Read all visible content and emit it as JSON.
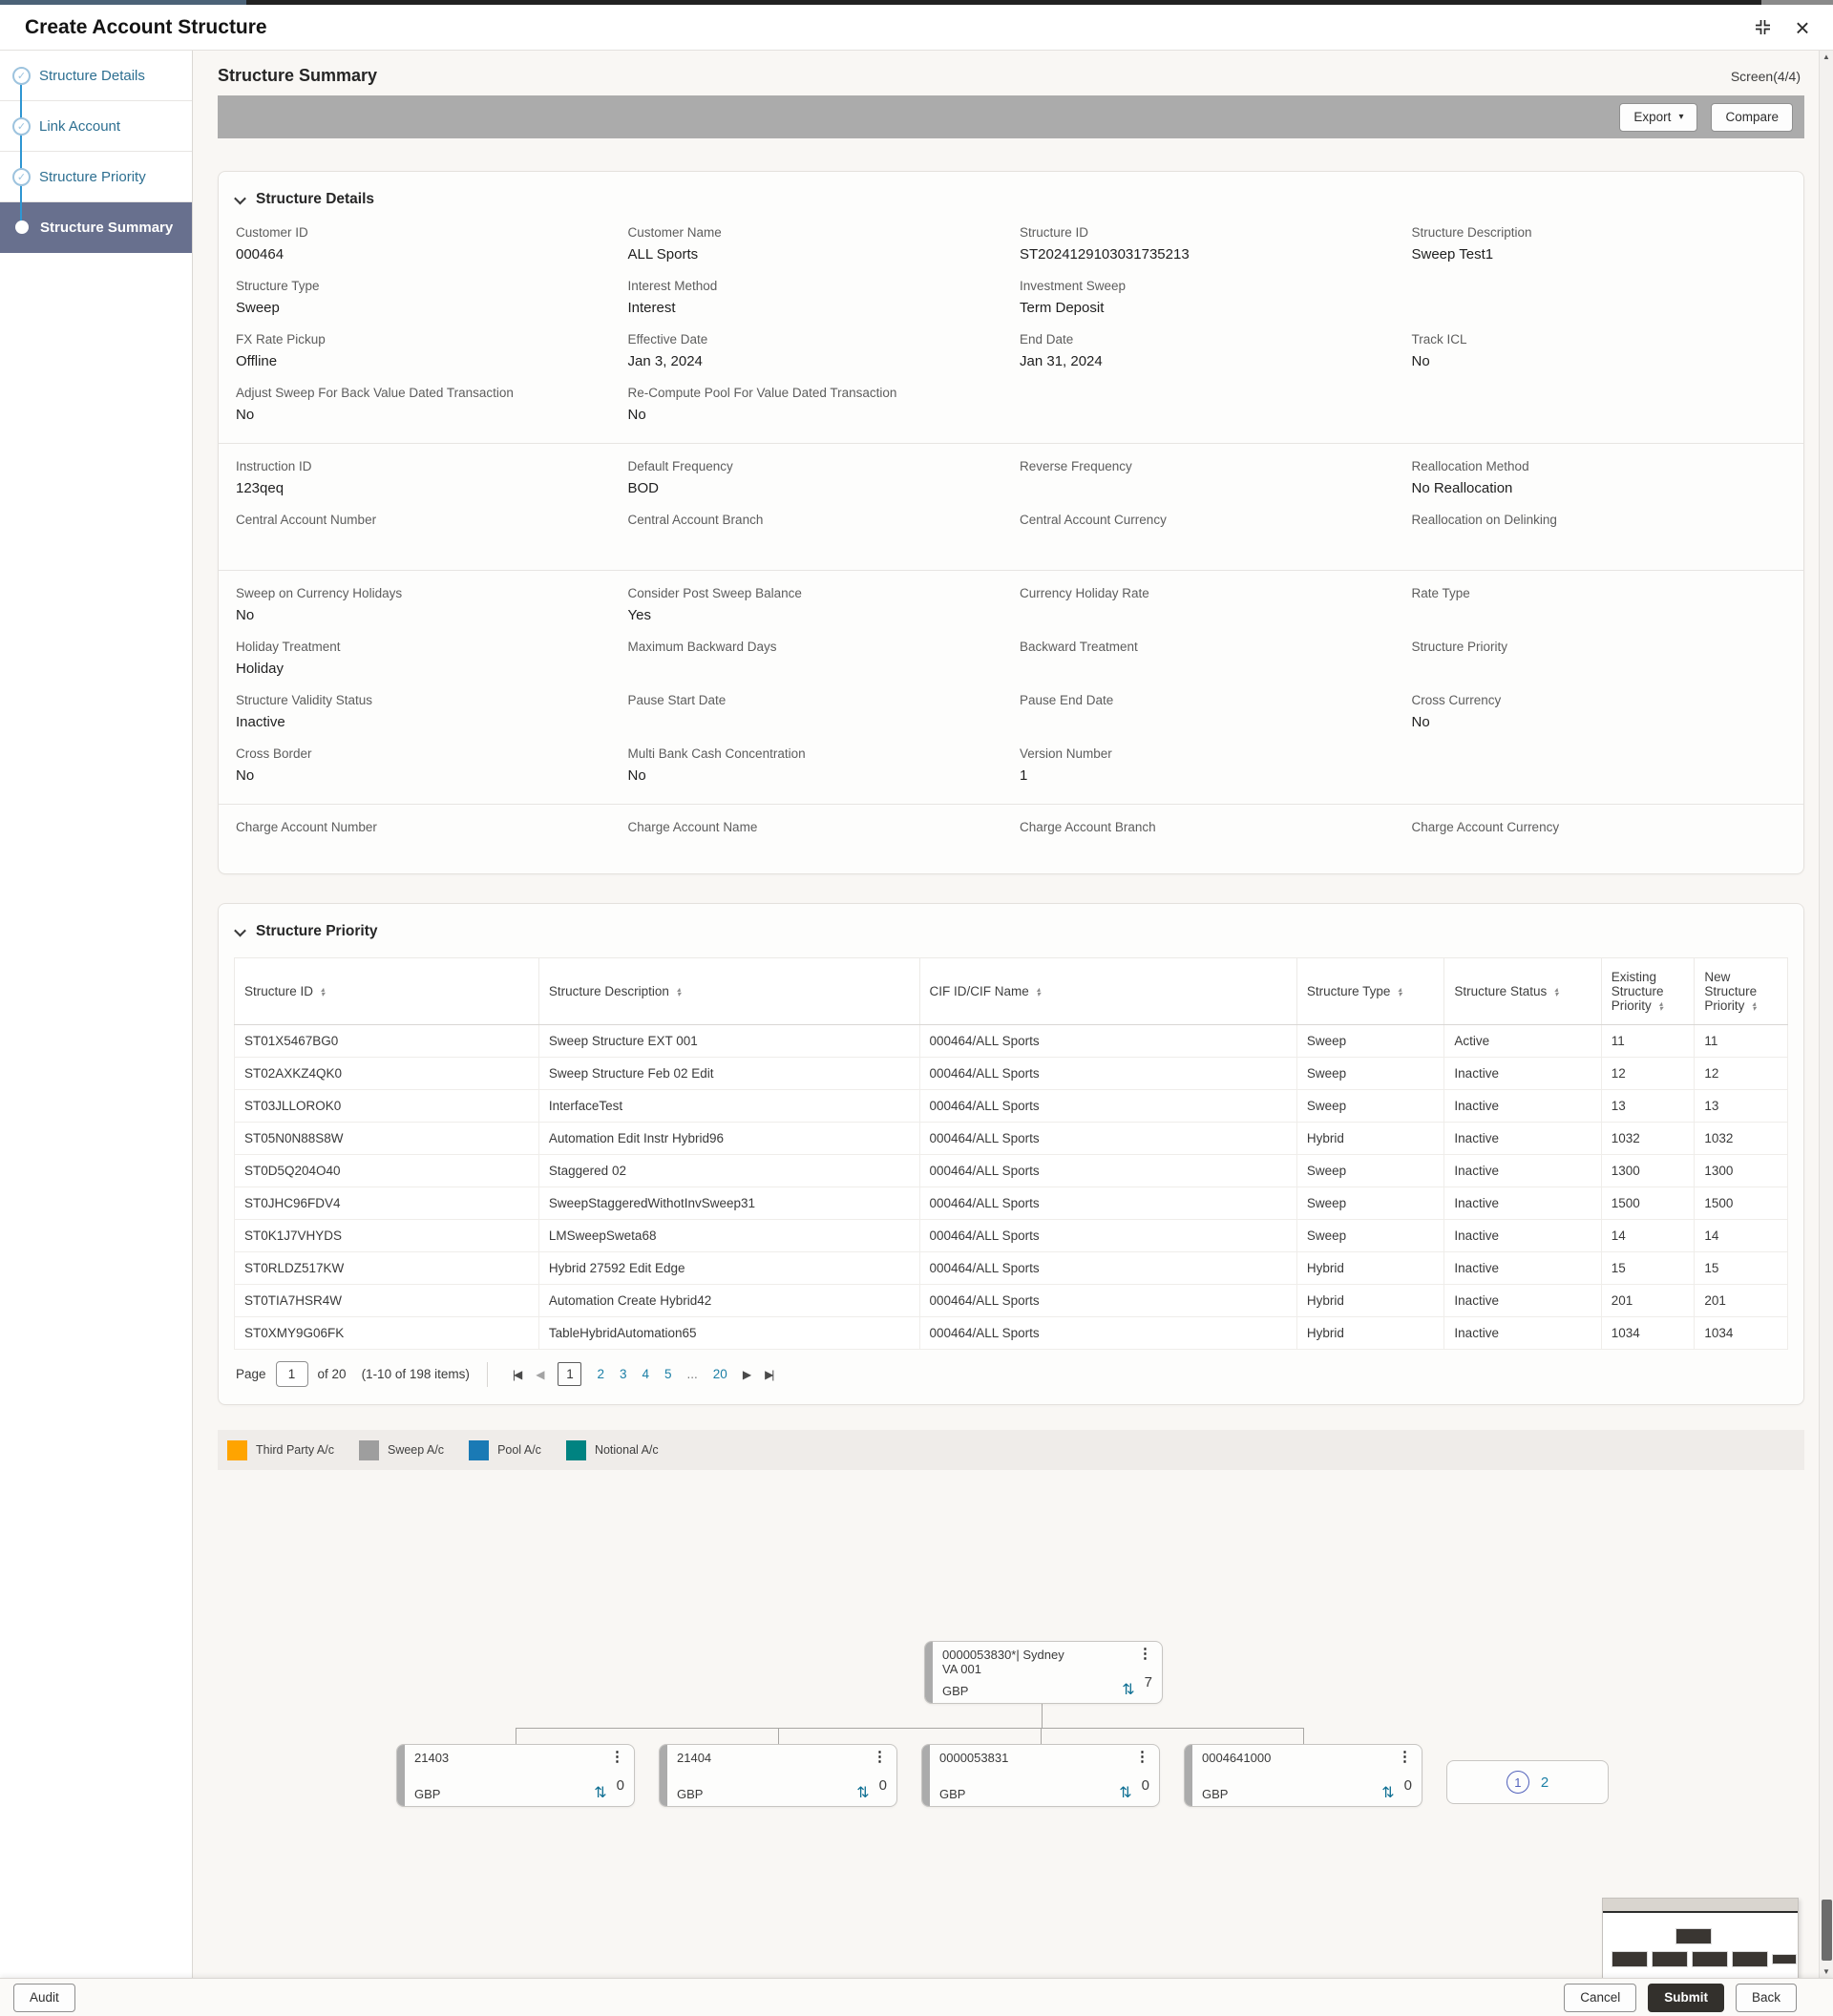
{
  "window": {
    "title": "Create Account Structure"
  },
  "wizard": {
    "steps": [
      {
        "label": "Structure Details",
        "state": "done"
      },
      {
        "label": "Link Account",
        "state": "done"
      },
      {
        "label": "Structure Priority",
        "state": "done"
      },
      {
        "label": "Structure Summary",
        "state": "active"
      }
    ]
  },
  "header": {
    "title": "Structure Summary",
    "screen": "Screen(4/4)"
  },
  "toolbar": {
    "export_label": "Export",
    "compare_label": "Compare"
  },
  "structure_details": {
    "title": "Structure Details",
    "groups": [
      [
        {
          "label": "Customer ID",
          "value": "000464"
        },
        {
          "label": "Customer Name",
          "value": "ALL Sports"
        },
        {
          "label": "Structure ID",
          "value": "ST2024129103031735213"
        },
        {
          "label": "Structure Description",
          "value": "Sweep Test1"
        },
        {
          "label": "Structure Type",
          "value": "Sweep"
        },
        {
          "label": "Interest Method",
          "value": "Interest"
        },
        {
          "label": "Investment Sweep",
          "value": "Term Deposit"
        },
        {
          "label": "",
          "value": ""
        },
        {
          "label": "FX Rate Pickup",
          "value": "Offline"
        },
        {
          "label": "Effective Date",
          "value": "Jan 3, 2024"
        },
        {
          "label": "End Date",
          "value": "Jan 31, 2024"
        },
        {
          "label": "Track ICL",
          "value": "No"
        },
        {
          "label": "Adjust Sweep For Back Value Dated Transaction",
          "value": "No"
        },
        {
          "label": "Re-Compute Pool For Value Dated Transaction",
          "value": "No"
        },
        {
          "label": "",
          "value": ""
        },
        {
          "label": "",
          "value": ""
        }
      ],
      [
        {
          "label": "Instruction ID",
          "value": "123qeq"
        },
        {
          "label": "Default Frequency",
          "value": "BOD"
        },
        {
          "label": "Reverse Frequency",
          "value": ""
        },
        {
          "label": "Reallocation Method",
          "value": "No Reallocation"
        },
        {
          "label": "Central Account Number",
          "value": ""
        },
        {
          "label": "Central Account Branch",
          "value": ""
        },
        {
          "label": "Central Account Currency",
          "value": ""
        },
        {
          "label": "Reallocation on Delinking",
          "value": ""
        }
      ],
      [
        {
          "label": "Sweep on Currency Holidays",
          "value": "No"
        },
        {
          "label": "Consider Post Sweep Balance",
          "value": "Yes"
        },
        {
          "label": "Currency Holiday Rate",
          "value": ""
        },
        {
          "label": "Rate Type",
          "value": ""
        },
        {
          "label": "Holiday Treatment",
          "value": "Holiday"
        },
        {
          "label": "Maximum Backward Days",
          "value": ""
        },
        {
          "label": "Backward Treatment",
          "value": ""
        },
        {
          "label": "Structure Priority",
          "value": ""
        },
        {
          "label": "Structure Validity Status",
          "value": "Inactive"
        },
        {
          "label": "Pause Start Date",
          "value": ""
        },
        {
          "label": "Pause End Date",
          "value": ""
        },
        {
          "label": "Cross Currency",
          "value": "No"
        },
        {
          "label": "Cross Border",
          "value": "No"
        },
        {
          "label": "Multi Bank Cash Concentration",
          "value": "No"
        },
        {
          "label": "Version Number",
          "value": "1"
        },
        {
          "label": "",
          "value": ""
        }
      ],
      [
        {
          "label": "Charge Account Number",
          "value": ""
        },
        {
          "label": "Charge Account Name",
          "value": ""
        },
        {
          "label": "Charge Account Branch",
          "value": ""
        },
        {
          "label": "Charge Account Currency",
          "value": ""
        }
      ]
    ]
  },
  "structure_priority": {
    "title": "Structure Priority",
    "columns": [
      "Structure ID",
      "Structure Description",
      "CIF ID/CIF Name",
      "Structure Type",
      "Structure Status",
      "Existing Structure Priority",
      "New Structure Priority"
    ],
    "rows": [
      [
        "ST01X5467BG0",
        "Sweep Structure EXT 001",
        "000464/ALL Sports",
        "Sweep",
        "Active",
        "11",
        "11"
      ],
      [
        "ST02AXKZ4QK0",
        "Sweep Structure Feb 02 Edit",
        "000464/ALL Sports",
        "Sweep",
        "Inactive",
        "12",
        "12"
      ],
      [
        "ST03JLLOROK0",
        "InterfaceTest",
        "000464/ALL Sports",
        "Sweep",
        "Inactive",
        "13",
        "13"
      ],
      [
        "ST05N0N88S8W",
        "Automation Edit Instr Hybrid96",
        "000464/ALL Sports",
        "Hybrid",
        "Inactive",
        "1032",
        "1032"
      ],
      [
        "ST0D5Q204O40",
        "Staggered 02",
        "000464/ALL Sports",
        "Sweep",
        "Inactive",
        "1300",
        "1300"
      ],
      [
        "ST0JHC96FDV4",
        "SweepStaggeredWithotInvSweep31",
        "000464/ALL Sports",
        "Sweep",
        "Inactive",
        "1500",
        "1500"
      ],
      [
        "ST0K1J7VHYDS",
        "LMSweepSweta68",
        "000464/ALL Sports",
        "Sweep",
        "Inactive",
        "14",
        "14"
      ],
      [
        "ST0RLDZ517KW",
        "Hybrid 27592 Edit Edge",
        "000464/ALL Sports",
        "Hybrid",
        "Inactive",
        "15",
        "15"
      ],
      [
        "ST0TIA7HSR4W",
        "Automation Create Hybrid42",
        "000464/ALL Sports",
        "Hybrid",
        "Inactive",
        "201",
        "201"
      ],
      [
        "ST0XMY9G06FK",
        "TableHybridAutomation65",
        "000464/ALL Sports",
        "Hybrid",
        "Inactive",
        "1034",
        "1034"
      ]
    ],
    "pagination": {
      "page_label": "Page",
      "page_value": "1",
      "of_label": "of 20",
      "items_label": "(1-10 of 198 items)",
      "pages": [
        "1",
        "2",
        "3",
        "4",
        "5",
        "...",
        "20"
      ],
      "current_page": "1"
    }
  },
  "tree": {
    "legend": [
      {
        "label": "Third Party A/c",
        "color": "#FFA400"
      },
      {
        "label": "Sweep A/c",
        "color": "#9E9E9E"
      },
      {
        "label": "Pool A/c",
        "color": "#1A7AB5"
      },
      {
        "label": "Notional A/c",
        "color": "#008381"
      }
    ],
    "root": {
      "title": "0000053830*| Sydney",
      "subtitle": "VA 001",
      "currency": "GBP",
      "count": "7"
    },
    "children": [
      {
        "title": "21403",
        "currency": "GBP",
        "count": "0"
      },
      {
        "title": "21404",
        "currency": "GBP",
        "count": "0"
      },
      {
        "title": "0000053831",
        "currency": "GBP",
        "count": "0"
      },
      {
        "title": "0004641000",
        "currency": "GBP",
        "count": "0"
      }
    ],
    "pager": {
      "current": "1",
      "next": "2"
    }
  },
  "footer": {
    "audit_label": "Audit",
    "cancel_label": "Cancel",
    "submit_label": "Submit",
    "back_label": "Back"
  }
}
